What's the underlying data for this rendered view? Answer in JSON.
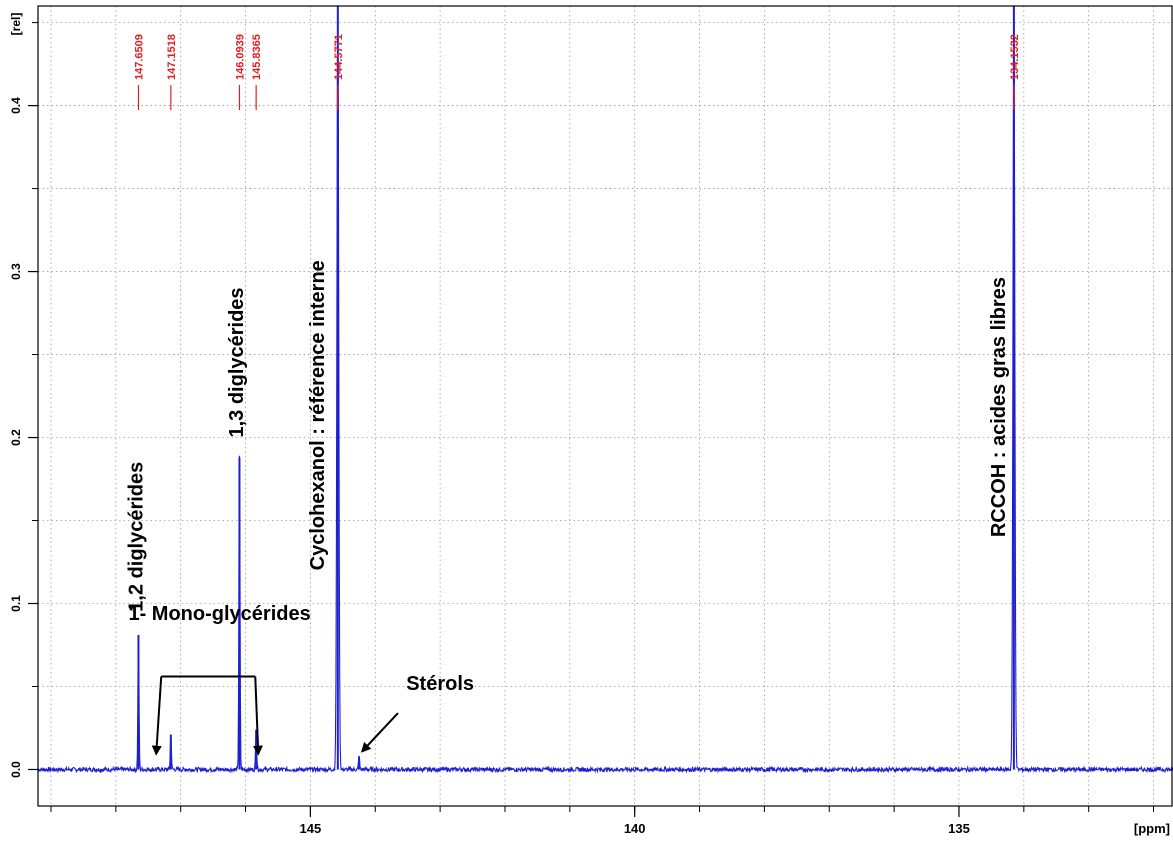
{
  "chart_data": {
    "type": "line",
    "xlabel": "[ppm]",
    "ylabel": "[rel]",
    "xlim": [
      149.2,
      131.7
    ],
    "ylim": [
      -0.022,
      0.46
    ],
    "x_ticks": [
      {
        "value": 145,
        "label": "145"
      },
      {
        "value": 140,
        "label": "140"
      },
      {
        "value": 135,
        "label": "135"
      }
    ],
    "y_ticks": [
      {
        "value": 0.0,
        "label": "0.0"
      },
      {
        "value": 0.1,
        "label": "0.1"
      },
      {
        "value": 0.2,
        "label": "0.2"
      },
      {
        "value": 0.3,
        "label": "0.3"
      },
      {
        "value": 0.4,
        "label": "0.4"
      }
    ],
    "grid": true,
    "series_color": "#1f1fd0",
    "peak_label_color": "#e02020",
    "series": [
      {
        "peaks": [
          {
            "x": 147.6509,
            "y": 0.081
          },
          {
            "x": 147.1518,
            "y": 0.021
          },
          {
            "x": 146.0939,
            "y": 0.188
          },
          {
            "x": 145.8365,
            "y": 0.024
          },
          {
            "x": 144.5771,
            "y": 0.46
          },
          {
            "x": 144.25,
            "y": 0.008
          },
          {
            "x": 134.1532,
            "y": 0.46
          }
        ]
      }
    ],
    "peak_labels": [
      "147.6509",
      "147.1518",
      "146.0939",
      "145.8365",
      "144.5771",
      "134.1532"
    ],
    "annotations": [
      {
        "text": "1,2 diglycérides",
        "x": 147.7,
        "y": 0.095
      },
      {
        "text": "1,3 diglycérides",
        "x": 146.15,
        "y": 0.2
      },
      {
        "text": "Cyclohexanol : référence interne",
        "x": 144.9,
        "y": 0.12
      },
      {
        "text": "RCCOH : acides gras libres",
        "x": 134.4,
        "y": 0.14
      },
      {
        "text": "1- Mono-glycérides",
        "x": 146.4,
        "y": 0.09
      },
      {
        "text": "Stérols",
        "x": 143.0,
        "y": 0.048
      }
    ]
  }
}
